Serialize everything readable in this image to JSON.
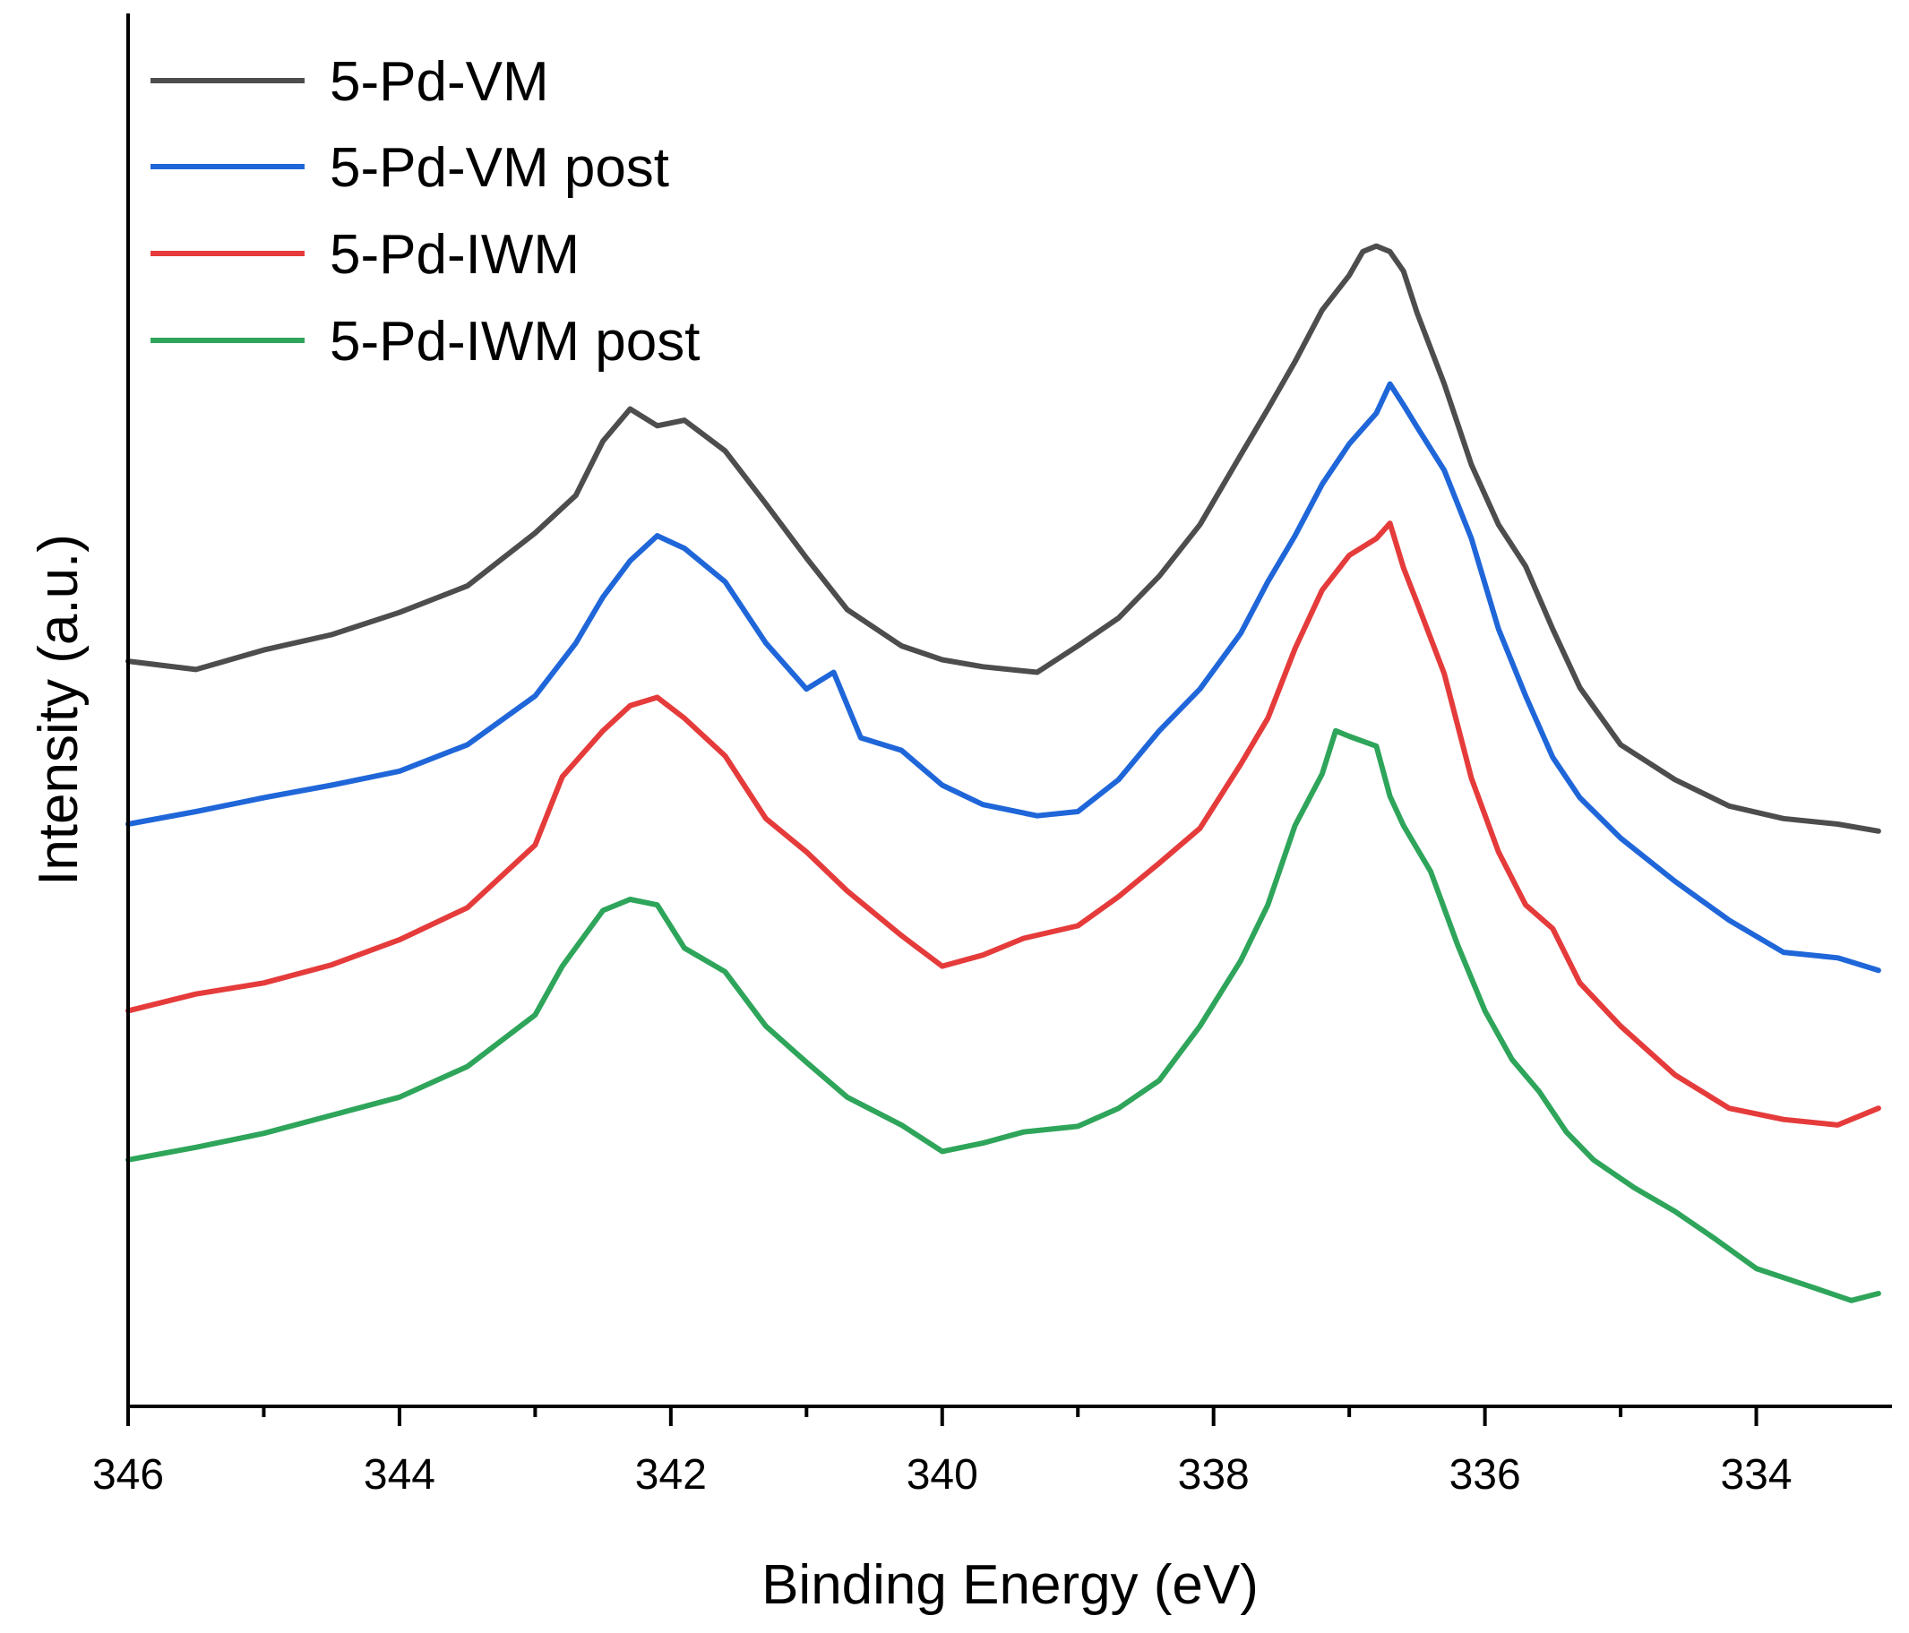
{
  "chart_data": {
    "type": "line",
    "xlabel": "Binding Energy (eV)",
    "ylabel": "Intensity (a.u.)",
    "xlim": [
      346,
      333
    ],
    "ylim": [
      0,
      100
    ],
    "x_reversed": true,
    "y_ticks_shown": false,
    "grid": false,
    "legend_position": "top-left",
    "x_ticks": [
      346,
      344,
      342,
      340,
      338,
      336,
      334
    ],
    "x_tick_labels": [
      "346",
      "344",
      "342",
      "340",
      "338",
      "336",
      "334"
    ],
    "series": [
      {
        "name": "5-Pd-VM",
        "color": "#4d4d4d",
        "x": [
          346,
          345.5,
          345,
          344.5,
          344,
          343.5,
          343,
          342.7,
          342.5,
          342.3,
          342.1,
          341.9,
          341.6,
          341.3,
          341,
          340.7,
          340.3,
          340,
          339.7,
          339.3,
          339,
          338.7,
          338.4,
          338.1,
          337.8,
          337.6,
          337.4,
          337.2,
          337,
          336.9,
          336.8,
          336.7,
          336.6,
          336.5,
          336.3,
          336.1,
          335.9,
          335.7,
          335.5,
          335.3,
          335,
          334.6,
          334.2,
          333.8,
          333.4,
          333.1
        ],
        "y": [
          53.5,
          52.9,
          54.3,
          55.4,
          57.0,
          58.9,
          62.7,
          65.4,
          69.3,
          71.6,
          70.4,
          70.8,
          68.6,
          64.8,
          60.9,
          57.2,
          54.6,
          53.6,
          53.1,
          52.7,
          54.6,
          56.6,
          59.6,
          63.3,
          68.3,
          71.6,
          75.0,
          78.7,
          81.2,
          82.9,
          83.3,
          82.9,
          81.5,
          78.5,
          73.4,
          67.6,
          63.3,
          60.3,
          55.8,
          51.6,
          47.5,
          45.0,
          43.1,
          42.2,
          41.8,
          41.3
        ]
      },
      {
        "name": "5-Pd-VM post",
        "color": "#1f66d9",
        "x": [
          346,
          345.5,
          345,
          344.5,
          344,
          343.5,
          343,
          342.7,
          342.5,
          342.3,
          342.1,
          341.9,
          341.6,
          341.3,
          341,
          340.8,
          340.6,
          340.3,
          340,
          339.7,
          339.3,
          339,
          338.7,
          338.4,
          338.1,
          337.8,
          337.6,
          337.4,
          337.2,
          337,
          336.8,
          336.7,
          336.6,
          336.5,
          336.3,
          336.1,
          335.9,
          335.7,
          335.5,
          335.3,
          335,
          334.6,
          334.2,
          333.8,
          333.4,
          333.1
        ],
        "y": [
          41.8,
          42.7,
          43.7,
          44.6,
          45.6,
          47.5,
          51.0,
          54.8,
          58.1,
          60.7,
          62.5,
          61.6,
          59.2,
          54.8,
          51.5,
          52.7,
          48.0,
          47.1,
          44.6,
          43.2,
          42.4,
          42.7,
          45.0,
          48.5,
          51.5,
          55.5,
          59.2,
          62.5,
          66.2,
          69.1,
          71.3,
          73.4,
          71.9,
          70.3,
          67.2,
          62.3,
          55.8,
          51.0,
          46.6,
          43.7,
          40.8,
          37.7,
          34.9,
          32.6,
          32.2,
          31.3
        ]
      },
      {
        "name": "5-Pd-IWM",
        "color": "#e53b3b",
        "x": [
          346,
          345.5,
          345,
          344.5,
          344,
          343.5,
          343,
          342.8,
          342.5,
          342.3,
          342.1,
          341.9,
          341.6,
          341.3,
          341,
          340.7,
          340.3,
          340,
          339.7,
          339.4,
          339,
          338.7,
          338.4,
          338.1,
          337.8,
          337.6,
          337.4,
          337.2,
          337,
          336.8,
          336.7,
          336.6,
          336.5,
          336.3,
          336.1,
          335.9,
          335.7,
          335.5,
          335.3,
          335,
          334.6,
          334.2,
          333.8,
          333.4,
          333.1
        ],
        "y": [
          28.4,
          29.6,
          30.4,
          31.7,
          33.5,
          35.8,
          40.3,
          45.2,
          48.5,
          50.3,
          50.9,
          49.4,
          46.7,
          42.2,
          39.8,
          37.0,
          33.8,
          31.6,
          32.4,
          33.6,
          34.5,
          36.6,
          39.0,
          41.5,
          46.1,
          49.4,
          54.4,
          58.6,
          61.1,
          62.3,
          63.4,
          60.2,
          57.7,
          52.6,
          45.1,
          39.8,
          36.0,
          34.3,
          30.4,
          27.3,
          23.8,
          21.4,
          20.6,
          20.2,
          21.4
        ]
      },
      {
        "name": "5-Pd-IWM post",
        "color": "#2ea55a",
        "x": [
          346,
          345.5,
          345,
          344.5,
          344,
          343.5,
          343,
          342.8,
          342.5,
          342.3,
          342.1,
          341.9,
          341.6,
          341.3,
          341,
          340.7,
          340.3,
          340,
          339.7,
          339.4,
          339,
          338.7,
          338.4,
          338.1,
          337.8,
          337.6,
          337.4,
          337.2,
          337.1,
          337,
          336.8,
          336.7,
          336.6,
          336.4,
          336.2,
          336,
          335.8,
          335.6,
          335.4,
          335.2,
          334.9,
          334.6,
          334.3,
          334,
          333.6,
          333.3,
          333.1
        ],
        "y": [
          17.7,
          18.6,
          19.6,
          20.9,
          22.2,
          24.4,
          28.1,
          31.6,
          35.6,
          36.4,
          36.0,
          32.9,
          31.2,
          27.3,
          24.7,
          22.2,
          20.2,
          18.3,
          18.9,
          19.7,
          20.1,
          21.4,
          23.4,
          27.3,
          32.0,
          36.0,
          41.7,
          45.4,
          48.5,
          48.1,
          47.4,
          43.8,
          41.7,
          38.4,
          33.1,
          28.4,
          24.9,
          22.6,
          19.7,
          17.7,
          15.7,
          14.0,
          12.0,
          9.9,
          8.6,
          7.6,
          8.1
        ]
      }
    ]
  }
}
